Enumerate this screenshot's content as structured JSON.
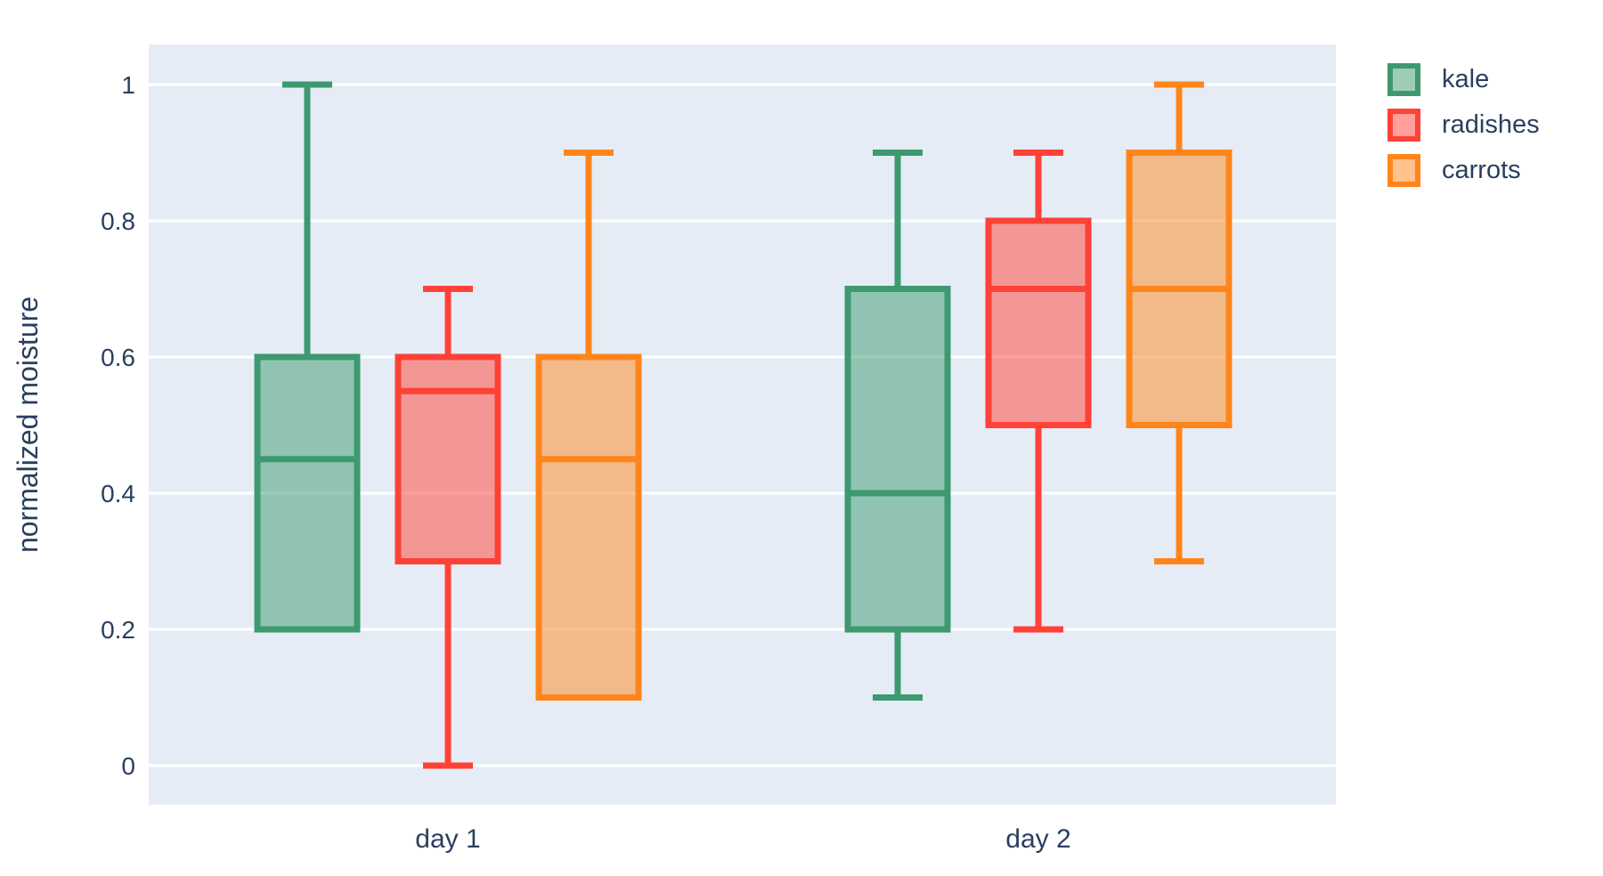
{
  "chart_data": {
    "type": "box",
    "title": "",
    "xlabel": "",
    "ylabel": "normalized moisture",
    "categories": [
      "day 1",
      "day 2"
    ],
    "ytick_labels": [
      "0",
      "0.2",
      "0.4",
      "0.6",
      "0.8",
      "1"
    ],
    "ytick_values": [
      0,
      0.2,
      0.4,
      0.6,
      0.8,
      1
    ],
    "ylim": [
      -0.06,
      1.06
    ],
    "grid": true,
    "legend_position": "top-right",
    "colors": {
      "page_bg": "#ffffff",
      "plot_bg": "#e5ecf6",
      "grid": "#ffffff",
      "text": "#2a3f5f"
    },
    "series": [
      {
        "name": "kale",
        "color": "#3D9970",
        "boxes": [
          {
            "category": "day 1",
            "min": 0.2,
            "q1": 0.2,
            "median": 0.45,
            "q3": 0.6,
            "max": 1.0
          },
          {
            "category": "day 2",
            "min": 0.1,
            "q1": 0.2,
            "median": 0.4,
            "q3": 0.7,
            "max": 0.9
          }
        ]
      },
      {
        "name": "radishes",
        "color": "#FF4136",
        "boxes": [
          {
            "category": "day 1",
            "min": 0.0,
            "q1": 0.3,
            "median": 0.55,
            "q3": 0.6,
            "max": 0.7
          },
          {
            "category": "day 2",
            "min": 0.2,
            "q1": 0.5,
            "median": 0.7,
            "q3": 0.8,
            "max": 0.9
          }
        ]
      },
      {
        "name": "carrots",
        "color": "#FF851B",
        "boxes": [
          {
            "category": "day 1",
            "min": 0.1,
            "q1": 0.1,
            "median": 0.45,
            "q3": 0.6,
            "max": 0.9
          },
          {
            "category": "day 2",
            "min": 0.3,
            "q1": 0.5,
            "median": 0.7,
            "q3": 0.9,
            "max": 1.0
          }
        ]
      }
    ]
  }
}
